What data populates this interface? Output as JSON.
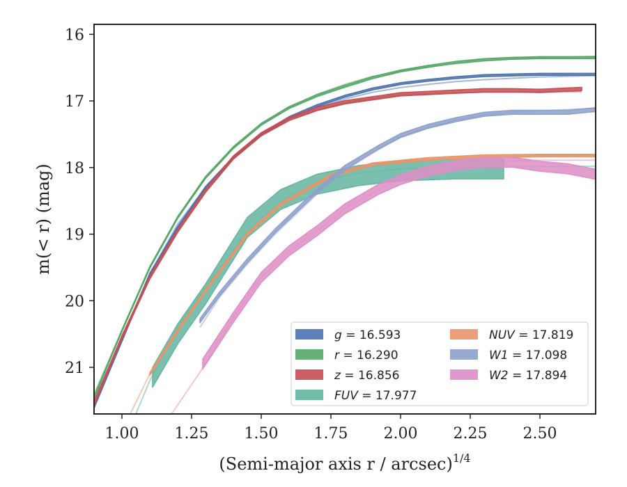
{
  "chart_data": {
    "type": "line",
    "xlabel": "(Semi-major axis r / arcsec)",
    "xlabel_sup": "1/4",
    "ylabel": "m(< r) (mag)",
    "xlim": [
      0.9,
      2.7
    ],
    "ylim": [
      21.7,
      15.85
    ],
    "x_ticks": [
      1.0,
      1.25,
      1.5,
      1.75,
      2.0,
      2.25,
      2.5
    ],
    "x_tick_labels": [
      "1.00",
      "1.25",
      "1.50",
      "1.75",
      "2.00",
      "2.25",
      "2.50"
    ],
    "y_ticks": [
      16,
      17,
      18,
      19,
      20,
      21
    ],
    "y_tick_labels": [
      "16",
      "17",
      "18",
      "19",
      "20",
      "21"
    ],
    "grid": false,
    "legend_position": "lower-right",
    "series": [
      {
        "name": "g = 16.593",
        "label_var": "g",
        "label_val": "16.593",
        "color": "#4c72b0",
        "x": [
          0.9,
          1.0,
          1.1,
          1.2,
          1.3,
          1.4,
          1.5,
          1.6,
          1.7,
          1.8,
          1.9,
          2.0,
          2.1,
          2.2,
          2.3,
          2.4,
          2.5,
          2.6,
          2.7
        ],
        "y": [
          21.6,
          20.6,
          19.6,
          18.9,
          18.3,
          17.85,
          17.5,
          17.25,
          17.07,
          16.93,
          16.82,
          16.74,
          16.69,
          16.65,
          16.62,
          16.61,
          16.6,
          16.6,
          16.6
        ],
        "width": 0.03,
        "model_y": [
          21.5,
          20.55,
          19.6,
          18.85,
          18.3,
          17.85,
          17.52,
          17.27,
          17.1,
          16.97,
          16.87,
          16.8,
          16.75,
          16.71,
          16.68,
          16.66,
          16.64,
          16.63,
          16.62
        ]
      },
      {
        "name": "r = 16.290",
        "label_var": "r",
        "label_val": "16.290",
        "color": "#55a868",
        "x": [
          0.9,
          1.0,
          1.1,
          1.2,
          1.3,
          1.4,
          1.5,
          1.6,
          1.7,
          1.8,
          1.9,
          2.0,
          2.1,
          2.2,
          2.3,
          2.4,
          2.5,
          2.6,
          2.7
        ],
        "y": [
          21.45,
          20.45,
          19.5,
          18.75,
          18.15,
          17.7,
          17.35,
          17.1,
          16.92,
          16.78,
          16.65,
          16.55,
          16.48,
          16.42,
          16.38,
          16.36,
          16.35,
          16.35,
          16.35
        ],
        "width": 0.03,
        "model_y": [
          21.4,
          20.45,
          19.5,
          18.75,
          18.15,
          17.7,
          17.35,
          17.1,
          16.9,
          16.75,
          16.63,
          16.55,
          16.48,
          16.44,
          16.4,
          16.37,
          16.35,
          16.34,
          16.33
        ]
      },
      {
        "name": "z = 16.856",
        "label_var": "z",
        "label_val": "16.856",
        "color": "#c44e52",
        "x": [
          0.9,
          1.0,
          1.1,
          1.2,
          1.3,
          1.4,
          1.5,
          1.6,
          1.7,
          1.8,
          1.9,
          2.0,
          2.1,
          2.2,
          2.3,
          2.4,
          2.5,
          2.6,
          2.65
        ],
        "y": [
          21.55,
          20.55,
          19.65,
          18.95,
          18.35,
          17.85,
          17.5,
          17.27,
          17.12,
          17.02,
          16.96,
          16.9,
          16.88,
          16.86,
          16.84,
          16.84,
          16.85,
          16.83,
          16.82
        ],
        "width": 0.05,
        "model_y": [
          21.5,
          20.55,
          19.65,
          18.95,
          18.35,
          17.85,
          17.5,
          17.27,
          17.13,
          17.03,
          16.96,
          16.91,
          16.89,
          16.88,
          16.87,
          16.87,
          16.86,
          16.86,
          16.86
        ]
      },
      {
        "name": "FUV = 17.977",
        "label_var": "FUV",
        "label_val": "17.977",
        "color": "#64b5a0",
        "x": [
          1.11,
          1.2,
          1.3,
          1.45,
          1.57,
          1.7,
          1.85,
          2.0,
          2.2,
          2.37
        ],
        "y": [
          21.15,
          20.5,
          19.9,
          18.9,
          18.48,
          18.25,
          18.12,
          18.05,
          18.02,
          18.02
        ],
        "width": 0.3,
        "model_y": [
          21.0,
          20.35,
          19.8,
          18.95,
          18.5,
          18.2,
          18.05,
          18.0,
          17.99,
          17.98
        ],
        "model_x": [
          1.0,
          1.05,
          1.1,
          1.2,
          1.3,
          1.45,
          1.57,
          1.7,
          1.85,
          2.0,
          2.3,
          2.7
        ],
        "model_y_full": [
          22.2,
          21.7,
          21.2,
          20.4,
          19.8,
          18.95,
          18.5,
          18.22,
          18.08,
          18.02,
          17.99,
          17.98
        ]
      },
      {
        "name": "NUV = 17.819",
        "label_var": "NUV",
        "label_val": "17.819",
        "color": "#e8956a",
        "x": [
          1.1,
          1.2,
          1.3,
          1.45,
          1.57,
          1.75,
          1.9,
          2.1,
          2.3,
          2.5,
          2.7
        ],
        "y": [
          21.1,
          20.45,
          19.85,
          19.0,
          18.55,
          18.12,
          17.95,
          17.87,
          17.83,
          17.82,
          17.82
        ],
        "width": 0.04,
        "model_x": [
          1.03,
          1.1,
          1.2,
          1.3,
          1.45,
          1.57,
          1.75,
          1.9,
          2.1,
          2.3,
          2.5,
          2.7
        ],
        "model_y_full": [
          21.7,
          21.1,
          20.45,
          19.85,
          19.0,
          18.55,
          18.12,
          17.95,
          17.87,
          17.83,
          17.82,
          17.82
        ]
      },
      {
        "name": "W1 = 17.098",
        "label_var": "W1",
        "label_val": "17.098",
        "color": "#8da0cb",
        "x": [
          1.28,
          1.35,
          1.45,
          1.55,
          1.7,
          1.8,
          1.92,
          2.0,
          2.1,
          2.2,
          2.3,
          2.4,
          2.5,
          2.6,
          2.7
        ],
        "y": [
          20.3,
          19.9,
          19.4,
          18.95,
          18.35,
          18.0,
          17.7,
          17.52,
          17.38,
          17.28,
          17.2,
          17.17,
          17.17,
          17.17,
          17.13
        ],
        "width": 0.06,
        "model_x": [
          1.28,
          1.35,
          1.45,
          1.55,
          1.7,
          1.8,
          1.92,
          2.0,
          2.1,
          2.2,
          2.3,
          2.4,
          2.5,
          2.6,
          2.7
        ],
        "model_y_full": [
          20.4,
          19.95,
          19.45,
          19.0,
          18.4,
          18.05,
          17.72,
          17.54,
          17.39,
          17.29,
          17.21,
          17.17,
          17.15,
          17.13,
          17.11
        ]
      },
      {
        "name": "W2 = 17.894",
        "label_var": "W2",
        "label_val": "17.894",
        "color": "#dd8ec5",
        "x": [
          1.29,
          1.4,
          1.5,
          1.6,
          1.7,
          1.8,
          1.92,
          2.0,
          2.1,
          2.2,
          2.3,
          2.4,
          2.5,
          2.6,
          2.7
        ],
        "y": [
          20.95,
          20.25,
          19.65,
          19.25,
          18.95,
          18.62,
          18.33,
          18.18,
          18.05,
          17.97,
          17.92,
          17.92,
          17.98,
          18.02,
          18.1
        ],
        "width": 0.15,
        "model_x": [
          1.17,
          1.3,
          1.4,
          1.5,
          1.6,
          1.7,
          1.8,
          1.92,
          2.0,
          2.1,
          2.2,
          2.3,
          2.4,
          2.5,
          2.7
        ],
        "model_y_full": [
          21.75,
          20.95,
          20.25,
          19.65,
          19.25,
          18.95,
          18.62,
          18.33,
          18.18,
          18.05,
          17.97,
          17.92,
          17.9,
          17.89,
          17.89
        ]
      }
    ]
  }
}
